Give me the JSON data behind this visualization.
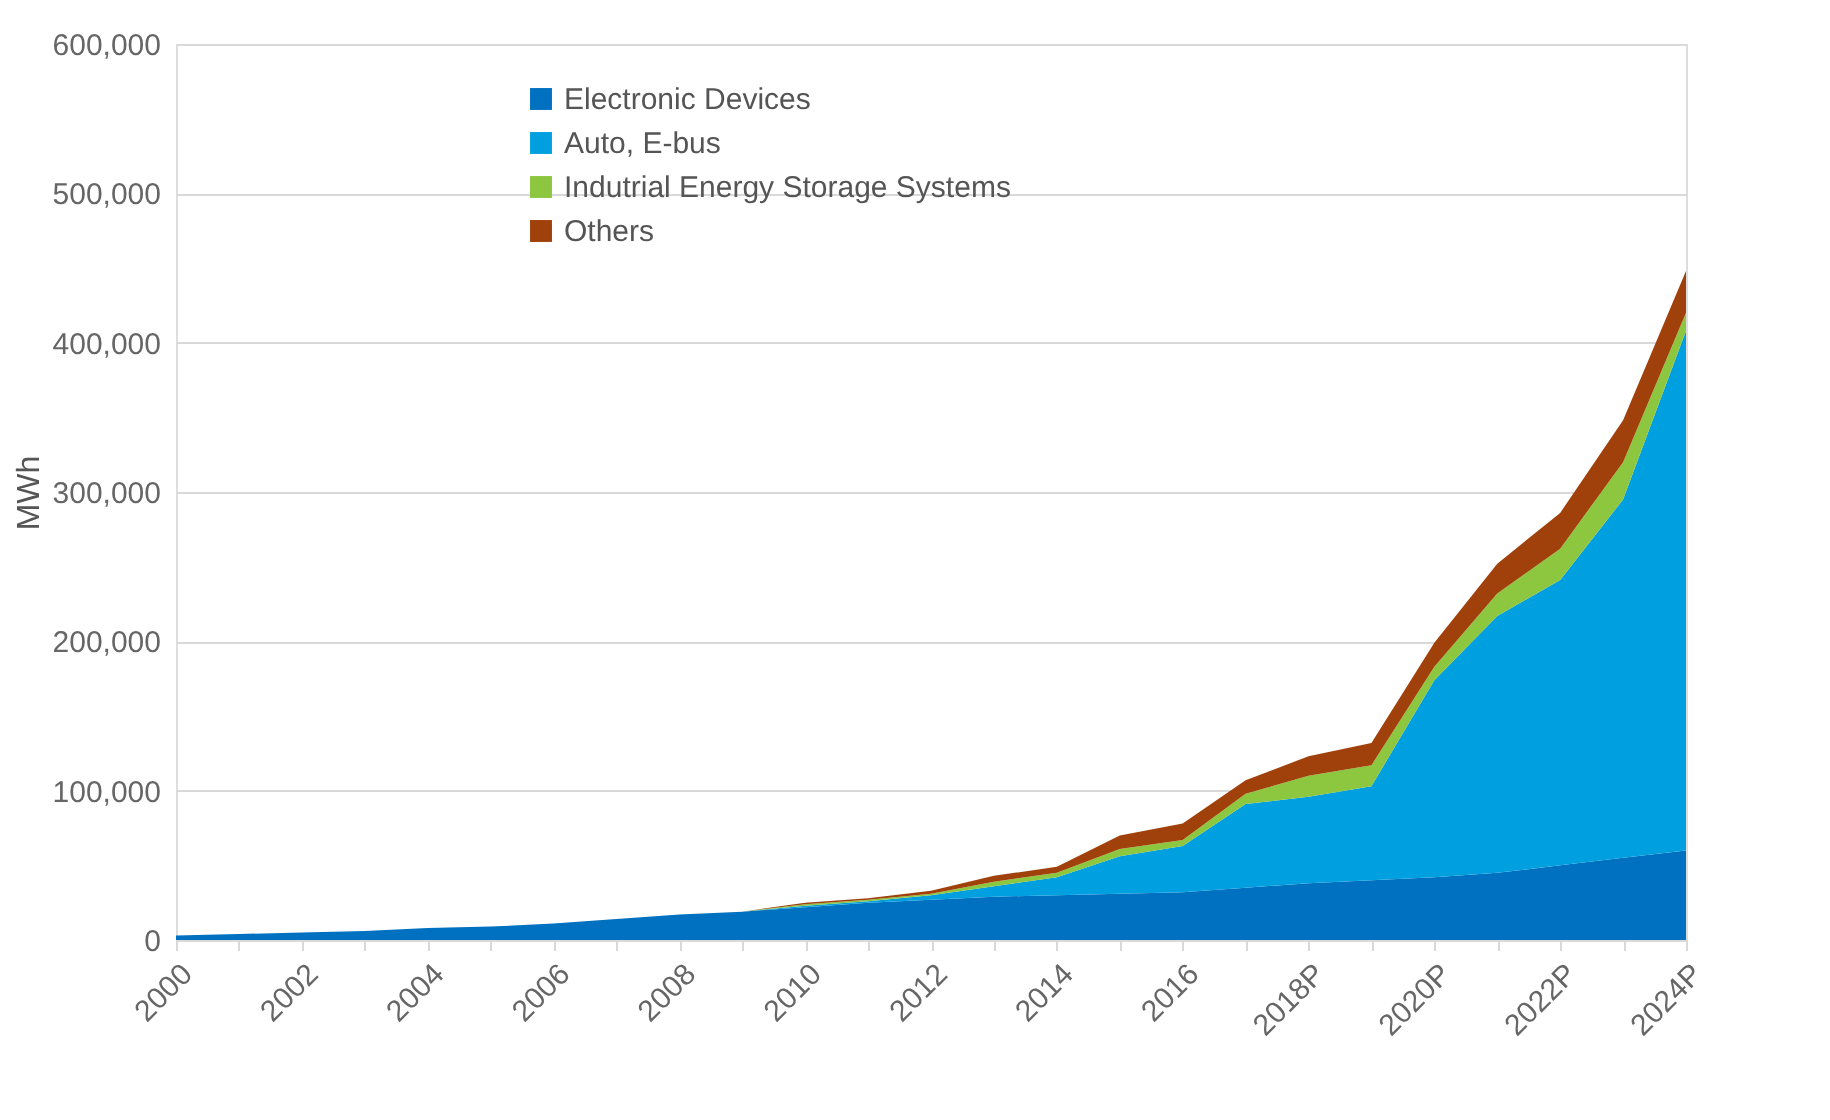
{
  "chart_data": {
    "type": "area",
    "stacked": true,
    "ylabel": "MWh",
    "categories": [
      "2000",
      null,
      "2002",
      null,
      "2004",
      null,
      "2006",
      null,
      "2008",
      null,
      "2010",
      null,
      "2012",
      null,
      "2014",
      null,
      "2016",
      null,
      "2018P",
      null,
      "2020P",
      null,
      "2022P",
      null,
      "2024P"
    ],
    "series": [
      {
        "name": "Electronic Devices",
        "color": "#0070c0",
        "values": [
          3000,
          4000,
          5000,
          6000,
          8000,
          9000,
          11000,
          14000,
          17000,
          19000,
          22000,
          25000,
          27000,
          29000,
          30000,
          31000,
          32000,
          35000,
          38000,
          40000,
          42000,
          45000,
          50000,
          55000,
          60000
        ]
      },
      {
        "name": "Auto, E-bus",
        "color": "#00a0e0",
        "values": [
          0,
          0,
          0,
          0,
          0,
          0,
          0,
          0,
          0,
          0,
          1000,
          1000,
          3000,
          7000,
          12000,
          25000,
          31000,
          56000,
          58000,
          63000,
          132000,
          172000,
          191000,
          240000,
          348000
        ]
      },
      {
        "name": "Indutrial Energy Storage Systems",
        "color": "#8dc63f",
        "values": [
          0,
          0,
          0,
          0,
          0,
          0,
          0,
          0,
          0,
          0,
          1000,
          1000,
          1000,
          3000,
          3000,
          5000,
          4000,
          7000,
          14000,
          14000,
          9000,
          15000,
          21000,
          25000,
          12000
        ]
      },
      {
        "name": "Others",
        "color": "#a0400a",
        "values": [
          0,
          0,
          0,
          0,
          0,
          0,
          0,
          0,
          0,
          0,
          1000,
          1000,
          2000,
          4000,
          4000,
          9000,
          11000,
          9000,
          13000,
          15000,
          16000,
          20000,
          24000,
          28000,
          28000
        ]
      }
    ],
    "ylim": [
      0,
      600000
    ],
    "yticks": [
      0,
      {
        "value": 100000,
        "label": "100,000"
      },
      {
        "value": 200000,
        "label": "200,000"
      },
      {
        "value": 300000,
        "label": "300,000"
      },
      {
        "value": 400000,
        "label": "400,000"
      },
      {
        "value": 500000,
        "label": "500,000"
      },
      {
        "value": 600000,
        "label": "600,000"
      }
    ],
    "grid": "y",
    "legend": "top left"
  }
}
